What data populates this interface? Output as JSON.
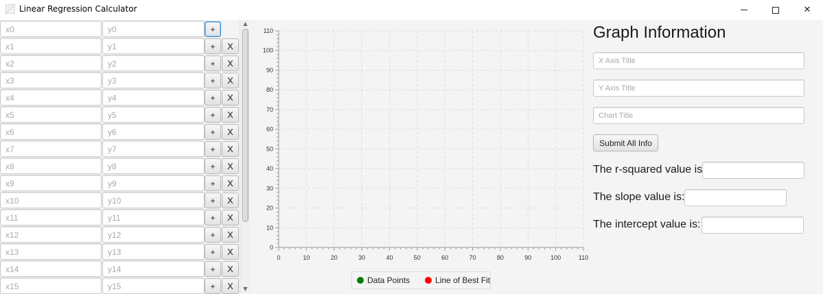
{
  "window": {
    "title": "Linear Regression Calculator",
    "controls": {
      "minimize": "minimize",
      "maximize": "maximize",
      "close": "✕"
    },
    "icon": "app-icon"
  },
  "data_table": {
    "rows": [
      {
        "x_placeholder": "x0",
        "y_placeholder": "y0",
        "add_label": "+",
        "remove_label": ""
      },
      {
        "x_placeholder": "x1",
        "y_placeholder": "y1",
        "add_label": "+",
        "remove_label": "X"
      },
      {
        "x_placeholder": "x2",
        "y_placeholder": "y2",
        "add_label": "+",
        "remove_label": "X"
      },
      {
        "x_placeholder": "x3",
        "y_placeholder": "y3",
        "add_label": "+",
        "remove_label": "X"
      },
      {
        "x_placeholder": "x4",
        "y_placeholder": "y4",
        "add_label": "+",
        "remove_label": "X"
      },
      {
        "x_placeholder": "x5",
        "y_placeholder": "y5",
        "add_label": "+",
        "remove_label": "X"
      },
      {
        "x_placeholder": "x6",
        "y_placeholder": "y6",
        "add_label": "+",
        "remove_label": "X"
      },
      {
        "x_placeholder": "x7",
        "y_placeholder": "y7",
        "add_label": "+",
        "remove_label": "X"
      },
      {
        "x_placeholder": "x8",
        "y_placeholder": "y8",
        "add_label": "+",
        "remove_label": "X"
      },
      {
        "x_placeholder": "x9",
        "y_placeholder": "y9",
        "add_label": "+",
        "remove_label": "X"
      },
      {
        "x_placeholder": "x10",
        "y_placeholder": "y10",
        "add_label": "+",
        "remove_label": "X"
      },
      {
        "x_placeholder": "x11",
        "y_placeholder": "y11",
        "add_label": "+",
        "remove_label": "X"
      },
      {
        "x_placeholder": "x12",
        "y_placeholder": "y12",
        "add_label": "+",
        "remove_label": "X"
      },
      {
        "x_placeholder": "x13",
        "y_placeholder": "y13",
        "add_label": "+",
        "remove_label": "X"
      },
      {
        "x_placeholder": "x14",
        "y_placeholder": "y14",
        "add_label": "+",
        "remove_label": "X"
      },
      {
        "x_placeholder": "x15",
        "y_placeholder": "y15",
        "add_label": "+",
        "remove_label": "X"
      }
    ],
    "scroll": {
      "up_icon": "▲",
      "down_icon": "▼"
    }
  },
  "chart_data": {
    "type": "scatter",
    "x": [],
    "y": [],
    "xlim": [
      0,
      110
    ],
    "ylim": [
      0,
      110
    ],
    "xticks": [
      "0",
      "10",
      "20",
      "30",
      "40",
      "50",
      "60",
      "70",
      "80",
      "90",
      "100",
      "110"
    ],
    "yticks": [
      "0",
      "10",
      "20",
      "30",
      "40",
      "50",
      "60",
      "70",
      "80",
      "90",
      "100",
      "110"
    ],
    "grid": true,
    "legend_position": "bottom",
    "series": [
      {
        "name": "Data Points",
        "color": "#0a7a0a",
        "values": []
      },
      {
        "name": "Line of Best Fit",
        "color": "#ff0000",
        "values": []
      }
    ]
  },
  "info_panel": {
    "heading": "Graph Information",
    "x_axis_title_placeholder": "X Axis Title",
    "y_axis_title_placeholder": "Y Axis Title",
    "chart_title_placeholder": "Chart Title",
    "submit_label": "Submit All Info",
    "r_squared_label": "The r-squared value is:",
    "slope_label": "The slope value is:",
    "intercept_label": "The intercept value is:"
  }
}
